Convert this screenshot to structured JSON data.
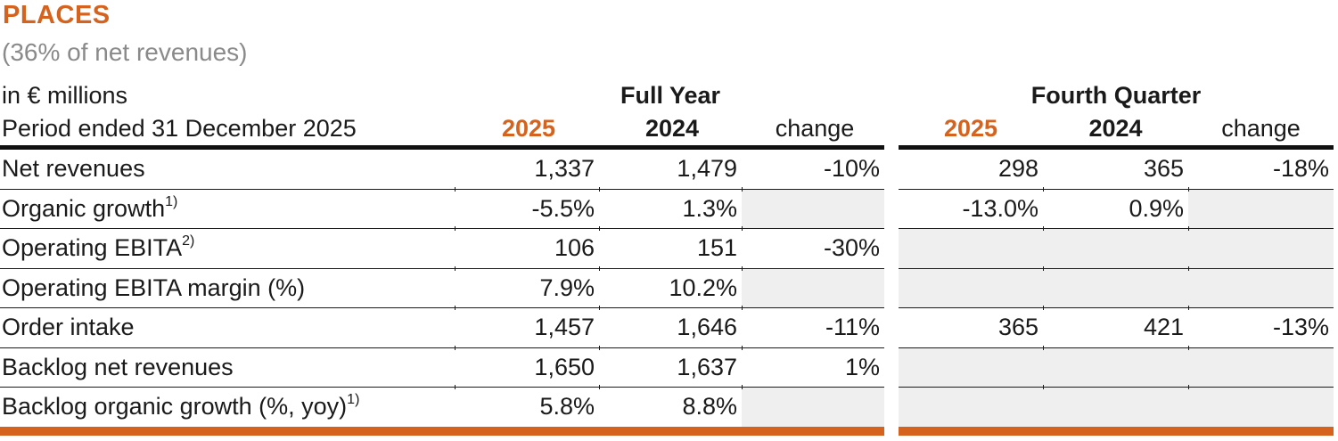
{
  "colors": {
    "accent_orange": "#d5631e",
    "shaded_cell": "#efefef",
    "subtitle_gray": "#8a8a8a",
    "text_black": "#1a1a1a"
  },
  "header": {
    "title": "PLACES",
    "subtitle": "(36% of net revenues)",
    "units_label": "in € millions",
    "period_label": "Period ended 31 December 2025"
  },
  "groups": {
    "full_year": "Full Year",
    "fourth_quarter": "Fourth Quarter"
  },
  "columns": {
    "y2025": "2025",
    "y2024": "2024",
    "change": "change"
  },
  "rows": [
    {
      "label": "Net revenues",
      "sup": "",
      "fy": {
        "y2025": "1,337",
        "y2024": "1,479",
        "change": "-10%"
      },
      "fq": {
        "y2025": "298",
        "y2024": "365",
        "change": "-18%"
      }
    },
    {
      "label": "Organic growth",
      "sup": "1)",
      "fy": {
        "y2025": "-5.5%",
        "y2024": "1.3%",
        "change": ""
      },
      "fq": {
        "y2025": "-13.0%",
        "y2024": "0.9%",
        "change": ""
      }
    },
    {
      "label": "Operating EBITA",
      "sup": "2)",
      "fy": {
        "y2025": "106",
        "y2024": "151",
        "change": "-30%"
      },
      "fq": {
        "y2025": "",
        "y2024": "",
        "change": ""
      }
    },
    {
      "label": "Operating EBITA margin (%)",
      "sup": "",
      "fy": {
        "y2025": "7.9%",
        "y2024": "10.2%",
        "change": ""
      },
      "fq": {
        "y2025": "",
        "y2024": "",
        "change": ""
      }
    },
    {
      "label": "Order intake",
      "sup": "",
      "fy": {
        "y2025": "1,457",
        "y2024": "1,646",
        "change": "-11%"
      },
      "fq": {
        "y2025": "365",
        "y2024": "421",
        "change": "-13%"
      }
    },
    {
      "label": "Backlog net revenues",
      "sup": "",
      "fy": {
        "y2025": "1,650",
        "y2024": "1,637",
        "change": "1%"
      },
      "fq": {
        "y2025": "",
        "y2024": "",
        "change": ""
      }
    },
    {
      "label": "Backlog organic growth (%, yoy)",
      "sup": "1)",
      "fy": {
        "y2025": "5.8%",
        "y2024": "8.8%",
        "change": ""
      },
      "fq": {
        "y2025": "",
        "y2024": "",
        "change": ""
      }
    }
  ]
}
